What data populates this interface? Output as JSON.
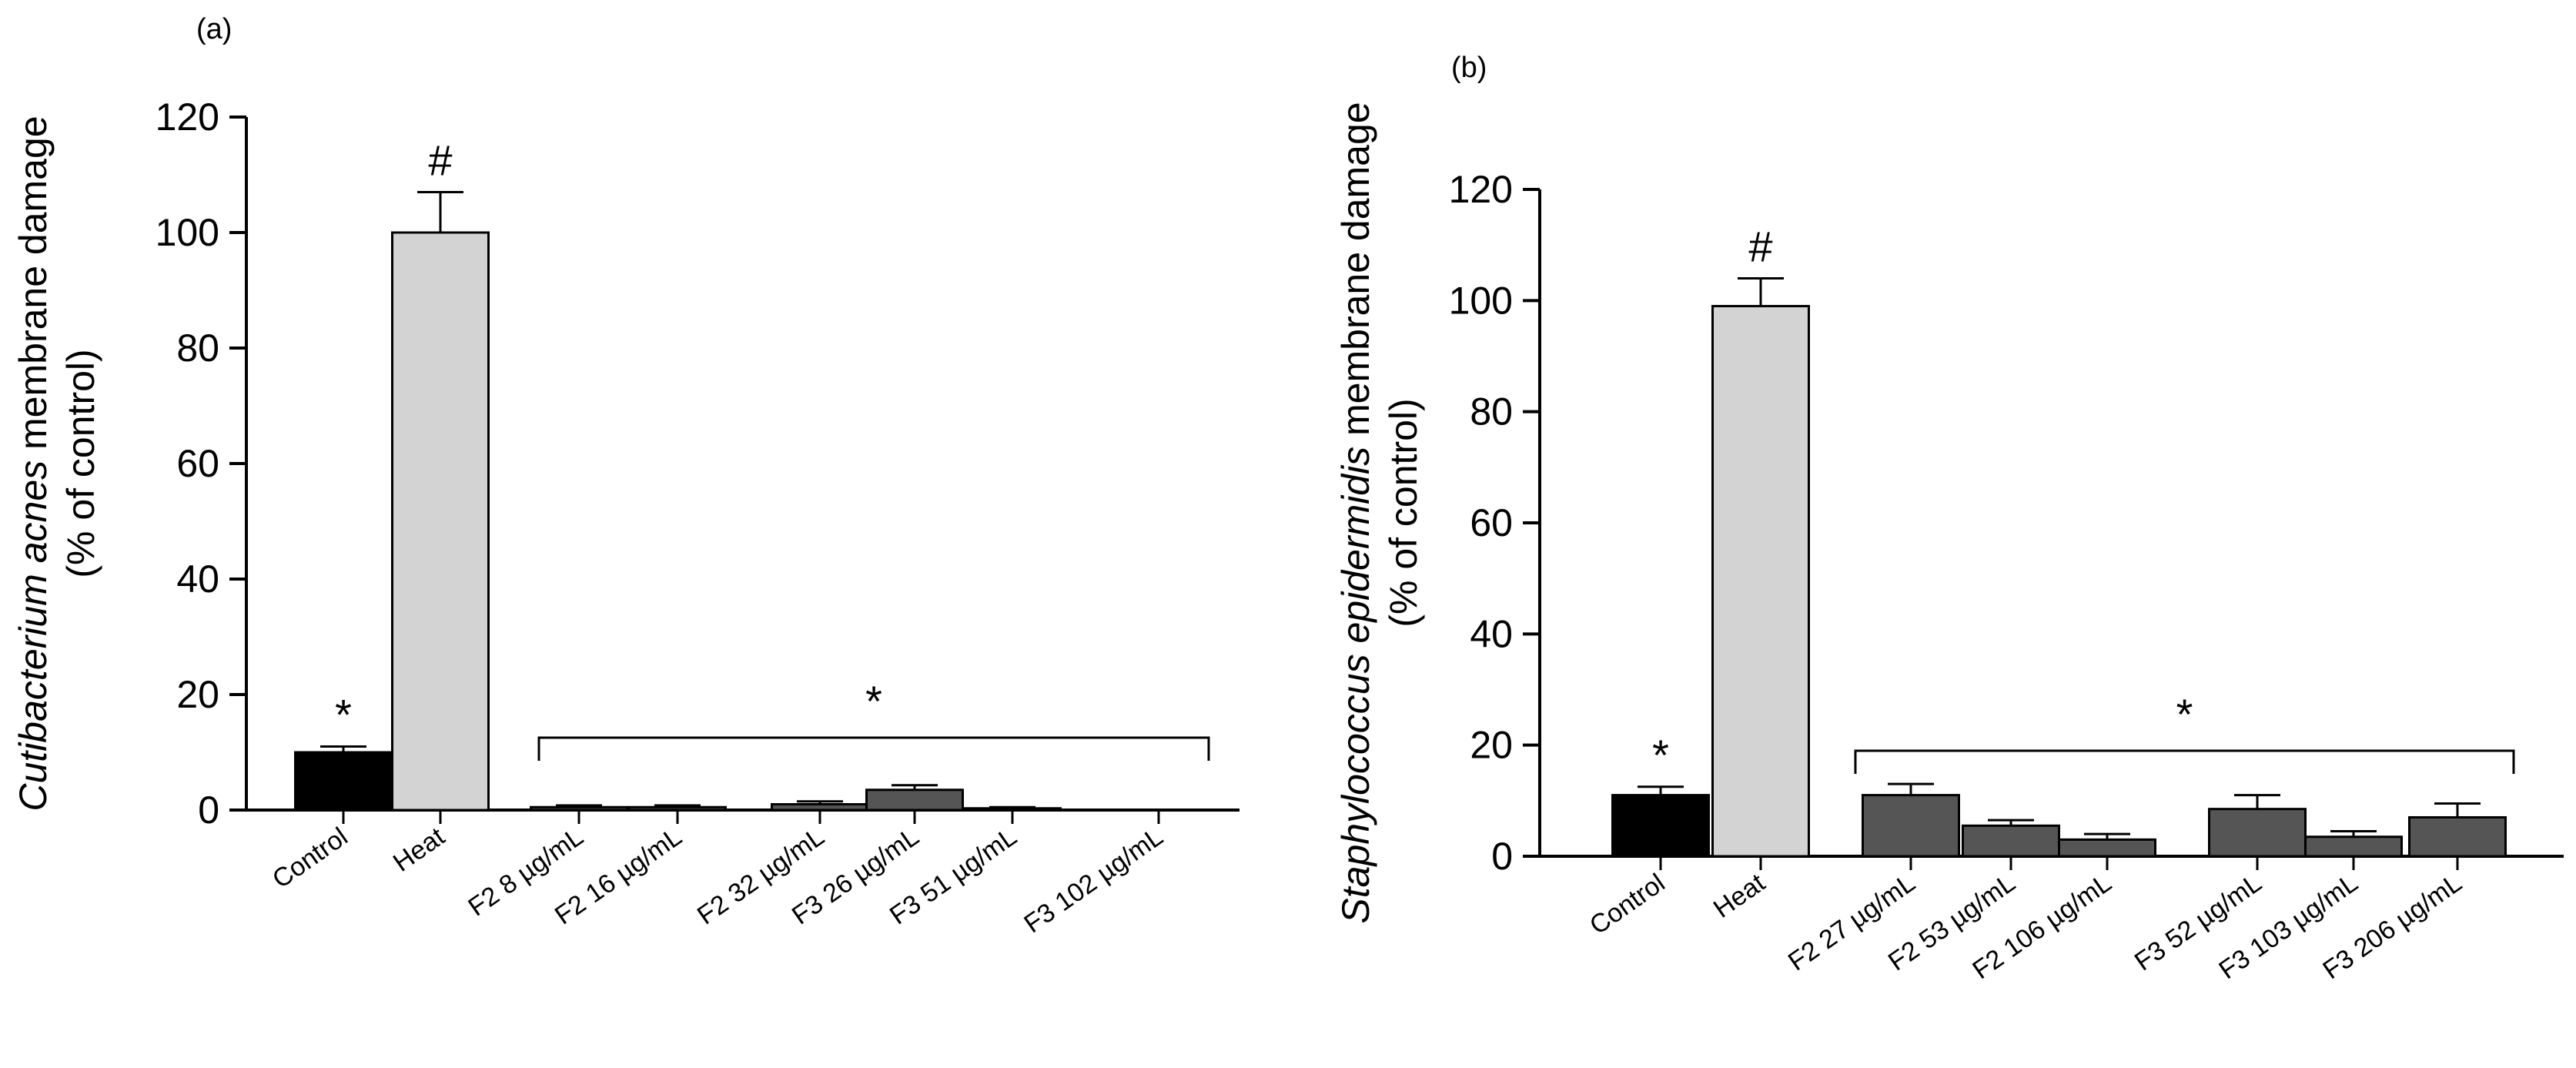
{
  "chart_data": [
    {
      "type": "bar",
      "panel_label": "(a)",
      "ylabel_italic": "Cutibacterium acnes",
      "ylabel_rest": " membrane damage",
      "ylabel_line2": "(% of control)",
      "ylim": [
        0,
        120
      ],
      "yticks": [
        0,
        20,
        40,
        60,
        80,
        100,
        120
      ],
      "bars": [
        {
          "label": "Control",
          "value": 10,
          "error": 1,
          "color": "#000000",
          "marker": "*"
        },
        {
          "label": "Heat",
          "value": 100,
          "error": 7,
          "color": "#d3d3d3",
          "marker": "#"
        },
        {
          "label": "F2 8 µg/mL",
          "value": 0.5,
          "error": 0.3,
          "color": "#555555",
          "marker": ""
        },
        {
          "label": "F2 16 µg/mL",
          "value": 0.5,
          "error": 0.3,
          "color": "#555555",
          "marker": ""
        },
        {
          "label": "F2 32 µg/mL",
          "value": 1,
          "error": 0.5,
          "color": "#555555",
          "marker": ""
        },
        {
          "label": "F3 26 µg/mL",
          "value": 3.5,
          "error": 0.8,
          "color": "#555555",
          "marker": ""
        },
        {
          "label": "F3 51 µg/mL",
          "value": 0.3,
          "error": 0.2,
          "color": "#555555",
          "marker": ""
        },
        {
          "label": "F3 102 µg/mL",
          "value": 0,
          "error": 0,
          "color": "#555555",
          "marker": ""
        }
      ],
      "bracket_marker": "*"
    },
    {
      "type": "bar",
      "panel_label": "(b)",
      "ylabel_italic": "Staphylococcus epidermidis",
      "ylabel_rest": " membrane damage",
      "ylabel_line2": "(% of control)",
      "ylim": [
        0,
        120
      ],
      "yticks": [
        0,
        20,
        40,
        60,
        80,
        100,
        120
      ],
      "bars": [
        {
          "label": "Control",
          "value": 11,
          "error": 1.5,
          "color": "#000000",
          "marker": "*"
        },
        {
          "label": "Heat",
          "value": 99,
          "error": 5,
          "color": "#d3d3d3",
          "marker": "#"
        },
        {
          "label": "F2 27 µg/mL",
          "value": 11,
          "error": 2,
          "color": "#555555",
          "marker": ""
        },
        {
          "label": "F2 53 µg/mL",
          "value": 5.5,
          "error": 1,
          "color": "#555555",
          "marker": ""
        },
        {
          "label": "F2 106 µg/mL",
          "value": 3,
          "error": 1,
          "color": "#555555",
          "marker": ""
        },
        {
          "label": "F3 52 µg/mL",
          "value": 8.5,
          "error": 2.5,
          "color": "#555555",
          "marker": ""
        },
        {
          "label": "F3 103 µg/mL",
          "value": 3.5,
          "error": 1,
          "color": "#555555",
          "marker": ""
        },
        {
          "label": "F3 206 µg/mL",
          "value": 7,
          "error": 2.5,
          "color": "#555555",
          "marker": ""
        }
      ],
      "bracket_marker": "*"
    }
  ]
}
